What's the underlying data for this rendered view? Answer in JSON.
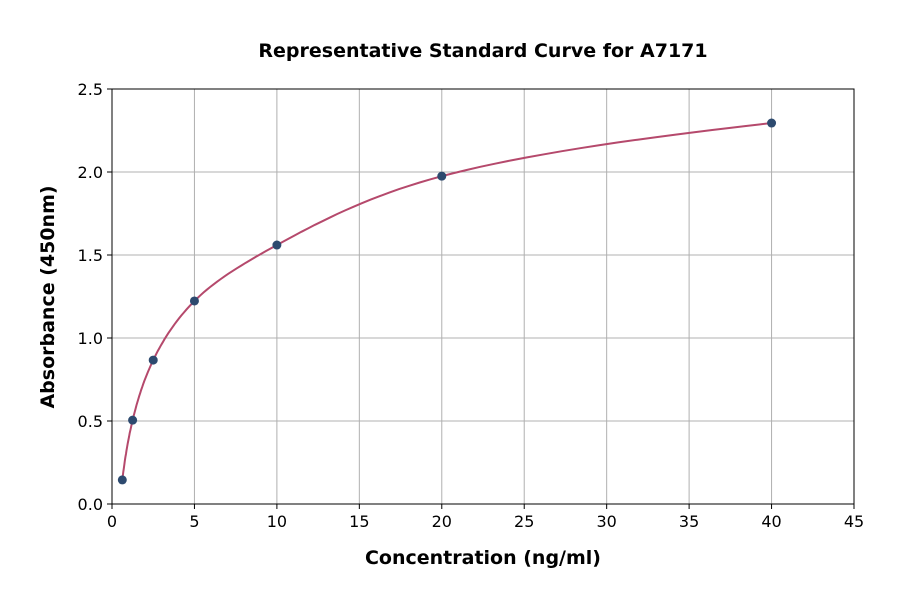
{
  "chart_data": {
    "type": "scatter",
    "title": "Representative Standard Curve for A7171",
    "xlabel": "Concentration (ng/ml)",
    "ylabel": "Absorbance (450nm)",
    "xlim": [
      0,
      45
    ],
    "ylim": [
      0,
      2.5
    ],
    "xticks": [
      0,
      5,
      10,
      15,
      20,
      25,
      30,
      35,
      40,
      45
    ],
    "yticks": [
      "0.0",
      "0.5",
      "1.0",
      "1.5",
      "2.0",
      "2.5"
    ],
    "grid": true,
    "points": [
      {
        "x": 0.625,
        "y": 0.145
      },
      {
        "x": 1.25,
        "y": 0.505
      },
      {
        "x": 2.5,
        "y": 0.867
      },
      {
        "x": 5,
        "y": 1.223
      },
      {
        "x": 10,
        "y": 1.56
      },
      {
        "x": 20,
        "y": 1.975
      },
      {
        "x": 40,
        "y": 2.295
      }
    ],
    "point_color": "#2d4a6f",
    "curve_color": "#b5496c"
  }
}
